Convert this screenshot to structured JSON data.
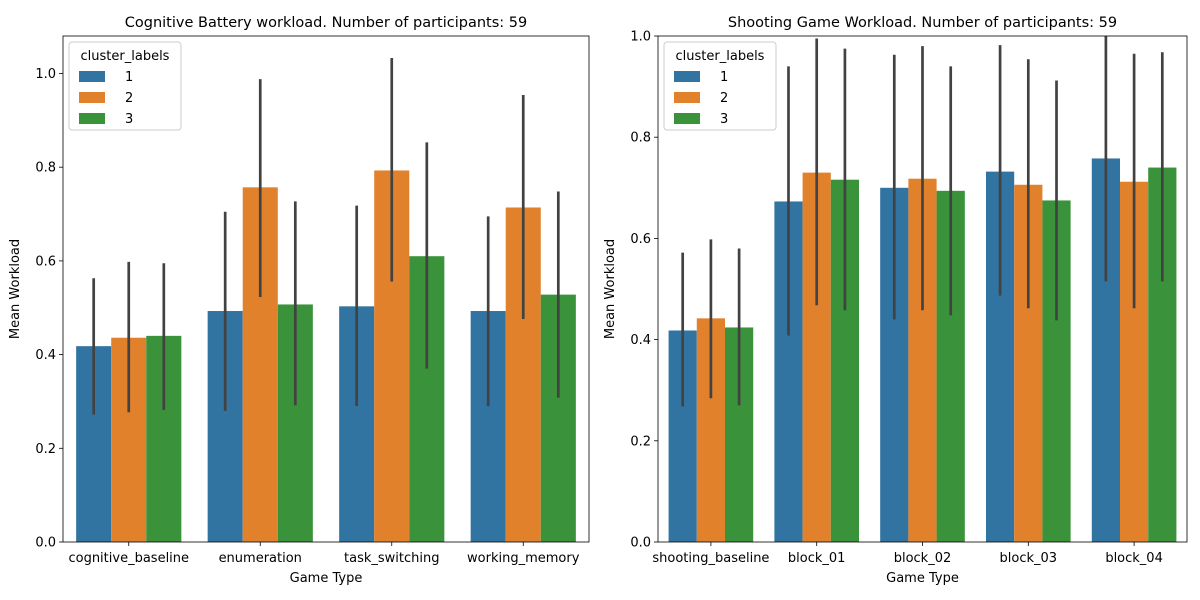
{
  "colors": {
    "series": [
      "#3274a1",
      "#e1812c",
      "#3a923a"
    ],
    "errorbar": "#424242"
  },
  "chart_data": [
    {
      "type": "bar",
      "title": "Cognitive Battery workload. Number of participants: 59",
      "xlabel": "Game Type",
      "ylabel": "Mean Workload",
      "ylim": [
        0,
        1.08
      ],
      "yticks": [
        "0.0",
        "0.2",
        "0.4",
        "0.6",
        "0.8",
        "1.0"
      ],
      "categories": [
        "cognitive_baseline",
        "enumeration",
        "task_switching",
        "working_memory"
      ],
      "legend": {
        "title": "cluster_labels",
        "position": "top-left"
      },
      "series": [
        {
          "name": "1",
          "values": [
            0.418,
            0.493,
            0.503,
            0.493
          ],
          "ci": [
            [
              0.272,
              0.563
            ],
            [
              0.28,
              0.705
            ],
            [
              0.29,
              0.718
            ],
            [
              0.29,
              0.695
            ]
          ]
        },
        {
          "name": "2",
          "values": [
            0.436,
            0.757,
            0.793,
            0.714
          ],
          "ci": [
            [
              0.277,
              0.598
            ],
            [
              0.523,
              0.988
            ],
            [
              0.556,
              1.033
            ],
            [
              0.476,
              0.954
            ]
          ]
        },
        {
          "name": "3",
          "values": [
            0.44,
            0.507,
            0.61,
            0.528
          ],
          "ci": [
            [
              0.282,
              0.595
            ],
            [
              0.292,
              0.727
            ],
            [
              0.37,
              0.853
            ],
            [
              0.308,
              0.748
            ]
          ]
        }
      ]
    },
    {
      "type": "bar",
      "title": "Shooting Game Workload. Number of participants: 59",
      "xlabel": "Game Type",
      "ylabel": "Mean Workload",
      "ylim": [
        0,
        1.0
      ],
      "yticks": [
        "0.0",
        "0.2",
        "0.4",
        "0.6",
        "0.8",
        "1.0"
      ],
      "categories": [
        "shooting_baseline",
        "block_01",
        "block_02",
        "block_03",
        "block_04"
      ],
      "legend": {
        "title": "cluster_labels",
        "position": "top-left"
      },
      "series": [
        {
          "name": "1",
          "values": [
            0.418,
            0.673,
            0.7,
            0.732,
            0.758
          ],
          "ci": [
            [
              0.268,
              0.572
            ],
            [
              0.408,
              0.94
            ],
            [
              0.44,
              0.963
            ],
            [
              0.487,
              0.982
            ],
            [
              0.515,
              1.0
            ]
          ]
        },
        {
          "name": "2",
          "values": [
            0.442,
            0.73,
            0.718,
            0.706,
            0.712
          ],
          "ci": [
            [
              0.284,
              0.598
            ],
            [
              0.468,
              0.995
            ],
            [
              0.458,
              0.98
            ],
            [
              0.462,
              0.954
            ],
            [
              0.462,
              0.965
            ]
          ]
        },
        {
          "name": "3",
          "values": [
            0.424,
            0.716,
            0.694,
            0.675,
            0.74
          ],
          "ci": [
            [
              0.27,
              0.58
            ],
            [
              0.458,
              0.975
            ],
            [
              0.448,
              0.94
            ],
            [
              0.438,
              0.912
            ],
            [
              0.515,
              0.968
            ]
          ]
        }
      ]
    }
  ]
}
